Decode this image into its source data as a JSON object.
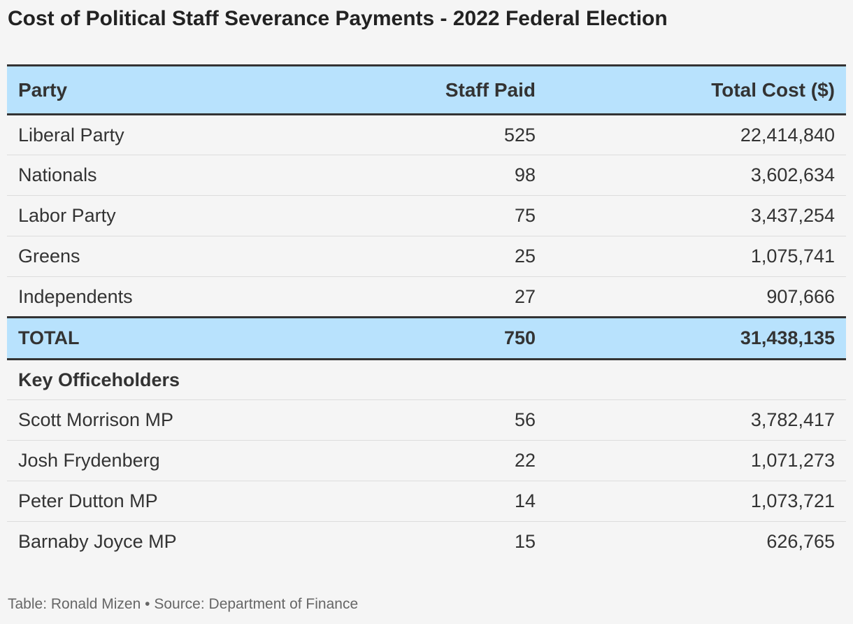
{
  "title": "Cost of Political Staff Severance Payments - 2022 Federal Election",
  "footer": {
    "author": "Table: Ronald Mizen",
    "separator": "•",
    "source": "Source: Department of Finance"
  },
  "colors": {
    "header_background": "#b8e2fd",
    "page_background": "#f5f5f5",
    "rule": "#333333"
  },
  "chart_data": {
    "type": "table",
    "columns": [
      "Party",
      "Staff Paid",
      "Total Cost ($)"
    ],
    "rows": [
      [
        "Liberal Party",
        "525",
        "22,414,840"
      ],
      [
        "Nationals",
        "98",
        "3,602,634"
      ],
      [
        "Labor Party",
        "75",
        "3,437,254"
      ],
      [
        "Greens",
        "25",
        "1,075,741"
      ],
      [
        "Independents",
        "27",
        "907,666"
      ]
    ],
    "total": [
      "TOTAL",
      "750",
      "31,438,135"
    ],
    "section_label": "Key Officeholders",
    "section_rows": [
      [
        "Scott Morrison MP",
        "56",
        "3,782,417"
      ],
      [
        "Josh Frydenberg",
        "22",
        "1,071,273"
      ],
      [
        "Peter Dutton MP",
        "14",
        "1,073,721"
      ],
      [
        "Barnaby Joyce MP",
        "15",
        "626,765"
      ]
    ]
  }
}
